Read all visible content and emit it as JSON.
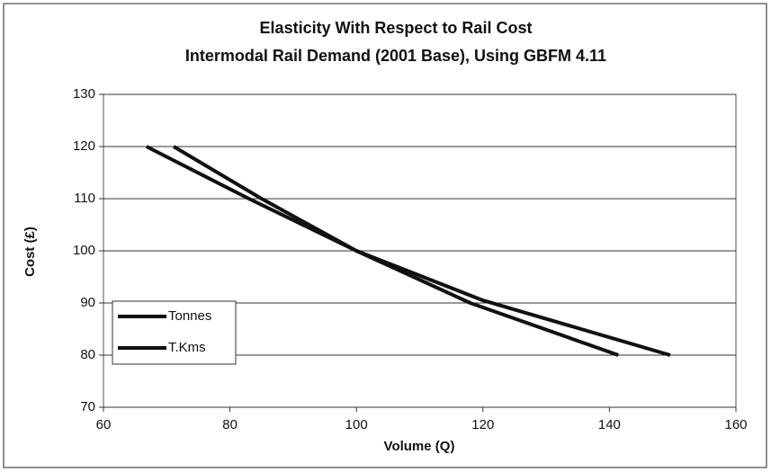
{
  "chart_data": {
    "type": "line",
    "title": "Elasticity With Respect to Rail Cost",
    "subtitle": "Intermodal Rail Demand (2001 Base), Using GBFM 4.11",
    "x_label": "Volume (Q)",
    "y_label": "Cost (£)",
    "series": [
      {
        "name": "Tonnes",
        "color": "#111111",
        "x": [
          66.8,
          83,
          100,
          120,
          149.6
        ],
        "values": [
          120,
          110,
          100,
          90.5,
          80
        ]
      },
      {
        "name": "T.Kms",
        "color": "#111111",
        "x": [
          71.1,
          85,
          100,
          118,
          141.4
        ],
        "values": [
          120,
          110,
          100,
          90,
          80
        ]
      }
    ],
    "xlim": [
      60,
      160
    ],
    "xticks": [
      60,
      80,
      100,
      120,
      140,
      160
    ],
    "ylim": [
      70,
      130
    ],
    "yticks": [
      70,
      80,
      90,
      100,
      110,
      120,
      130
    ],
    "grid": true,
    "legend": "lower left"
  }
}
